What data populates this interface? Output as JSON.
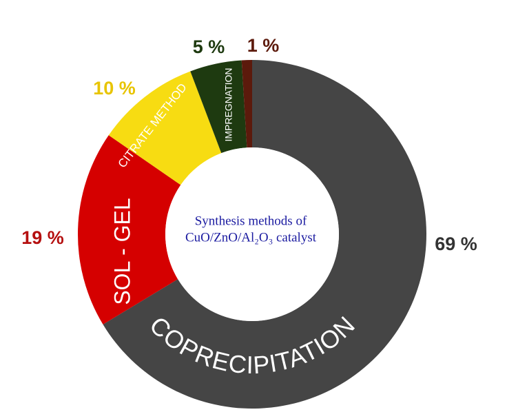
{
  "chart_data": {
    "type": "donut",
    "title": [
      "Synthesis methods of",
      "CuO/ZnO/Al₂O₃ catalyst"
    ],
    "categories": [
      "COPRECIPITATION",
      "SOL - GEL",
      "CITRATE METHOD",
      "IMPREGNATION",
      null
    ],
    "values": [
      69,
      19,
      10,
      5,
      1
    ],
    "value_labels": [
      "69 %",
      "19 %",
      "10 %",
      "5 %",
      "1 %"
    ],
    "colors": [
      "#454545",
      "#d50000",
      "#f7dc12",
      "#1e3a10",
      "#5c1a0c"
    ],
    "label_colors": [
      "#333333",
      "#b51010",
      "#e8c400",
      "#1e3a10",
      "#5c1a0c"
    ]
  }
}
